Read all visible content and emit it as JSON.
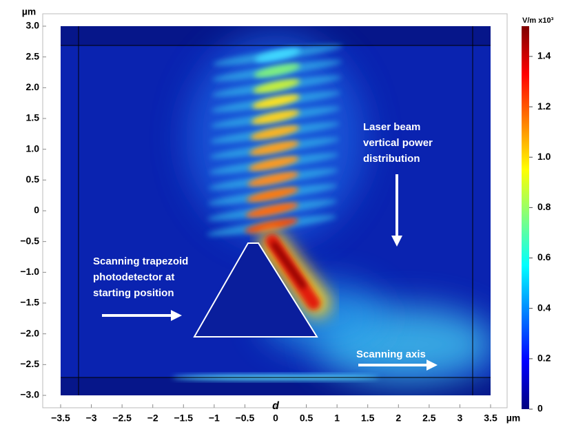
{
  "chart_data": {
    "type": "field",
    "xlabel": "d",
    "x_unit": "µm",
    "y_unit": "µm",
    "xlim": [
      -3.5,
      3.5
    ],
    "ylim": [
      -3,
      3
    ],
    "xticks": [
      {
        "value": -3.5,
        "label": "−3.5"
      },
      {
        "value": -3,
        "label": "−3"
      },
      {
        "value": -2.5,
        "label": "−2.5"
      },
      {
        "value": -2,
        "label": "−2"
      },
      {
        "value": -1.5,
        "label": "−1.5"
      },
      {
        "value": -1,
        "label": "−1"
      },
      {
        "value": -0.5,
        "label": "−0.5"
      },
      0,
      0.5,
      1,
      1.5,
      2,
      2.5,
      3,
      3.5
    ],
    "yticks": [
      {
        "value": 3,
        "label": "3.0"
      },
      2.5,
      {
        "value": 2,
        "label": "2.0"
      },
      1.5,
      {
        "value": 1,
        "label": "1.0"
      },
      0.5,
      0,
      {
        "value": -0.5,
        "label": "−0.5"
      },
      {
        "value": -1,
        "label": "−1.0"
      },
      {
        "value": -1.5,
        "label": "−1.5"
      },
      {
        "value": -2,
        "label": "−2.0"
      },
      {
        "value": -2.5,
        "label": "−2.5"
      },
      {
        "value": -3,
        "label": "−3.0"
      }
    ],
    "colorbar": {
      "label": "V/m x10³",
      "lim": [
        0,
        1.52
      ],
      "ticks": [
        0,
        0.2,
        0.4,
        0.6,
        0.8,
        {
          "value": 1,
          "label": "1.0"
        },
        1.2,
        1.4
      ]
    },
    "annotations": [
      {
        "text": [
          "Scanning trapezoid",
          "photodetector at",
          "starting position"
        ]
      },
      {
        "text": [
          "Laser beam",
          "vertical power",
          "distribution"
        ]
      },
      {
        "text": [
          "Scanning axis"
        ]
      }
    ]
  }
}
